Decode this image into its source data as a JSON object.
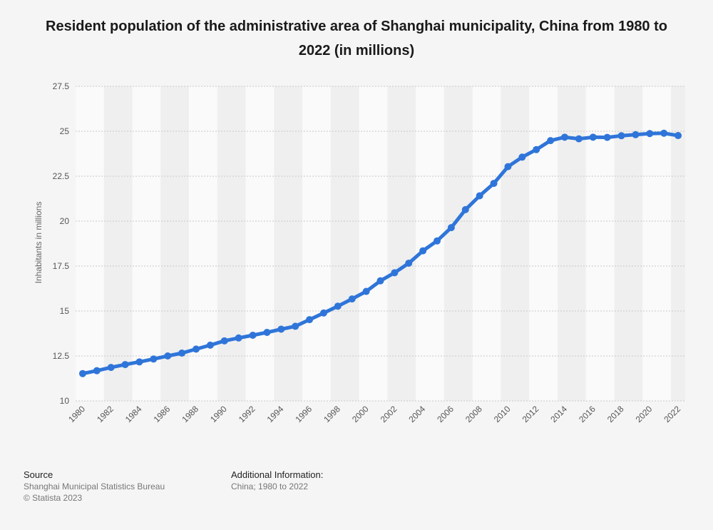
{
  "chart_data": {
    "type": "line",
    "title": "Resident population of the administrative area of Shanghai municipality, China from 1980 to 2022 (in millions)",
    "ylabel": "Inhabitants in millions",
    "xlabel": "",
    "ylim": [
      10,
      27.5
    ],
    "yticks": [
      "10",
      "12.5",
      "15",
      "17.5",
      "20",
      "22.5",
      "25",
      "27.5"
    ],
    "ytick_values": [
      10,
      12.5,
      15,
      17.5,
      20,
      22.5,
      25,
      27.5
    ],
    "xticks": [
      "1980",
      "1982",
      "1984",
      "1986",
      "1988",
      "1990",
      "1992",
      "1994",
      "1996",
      "1998",
      "2000",
      "2002",
      "2004",
      "2006",
      "2008",
      "2010",
      "2012",
      "2014",
      "2016",
      "2018",
      "2020",
      "2022"
    ],
    "x": [
      1980,
      1981,
      1982,
      1983,
      1984,
      1985,
      1986,
      1987,
      1988,
      1989,
      1990,
      1991,
      1992,
      1993,
      1994,
      1995,
      1996,
      1997,
      1998,
      1999,
      2000,
      2001,
      2002,
      2003,
      2004,
      2005,
      2006,
      2007,
      2008,
      2009,
      2010,
      2011,
      2012,
      2013,
      2014,
      2015,
      2016,
      2017,
      2018,
      2019,
      2020,
      2021,
      2022
    ],
    "series": [
      {
        "values": [
          11.52,
          11.68,
          11.86,
          12.02,
          12.17,
          12.33,
          12.5,
          12.66,
          12.88,
          13.1,
          13.34,
          13.5,
          13.65,
          13.81,
          13.99,
          14.15,
          14.52,
          14.89,
          15.27,
          15.67,
          16.09,
          16.68,
          17.13,
          17.66,
          18.35,
          18.9,
          19.64,
          20.64,
          21.41,
          22.1,
          23.03,
          23.56,
          23.98,
          24.48,
          24.67,
          24.58,
          24.67,
          24.66,
          24.75,
          24.81,
          24.87,
          24.89,
          24.76
        ],
        "color": "#2f75d9"
      }
    ],
    "grid": true,
    "legend": "none"
  },
  "footer": {
    "source_heading": "Source",
    "source_line1": "Shanghai Municipal Statistics Bureau",
    "source_line2": "© Statista 2023",
    "info_heading": "Additional Information:",
    "info_line1": "China; 1980 to 2022"
  }
}
